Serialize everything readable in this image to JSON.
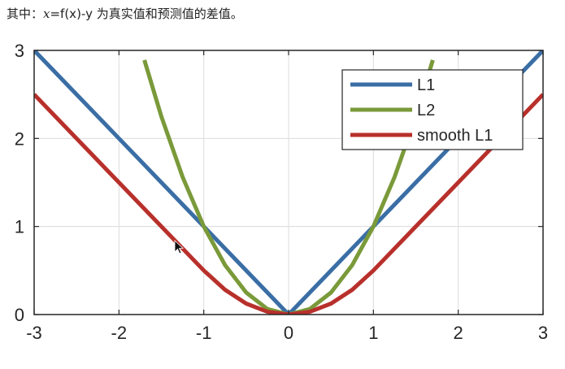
{
  "caption": {
    "prefix": "其中：",
    "var": "x",
    "rest": "=f(x)-y 为真实值和预测值的差值。"
  },
  "chart_data": {
    "type": "line",
    "title": "",
    "xlabel": "",
    "ylabel": "",
    "xlim": [
      -3,
      3
    ],
    "ylim": [
      0,
      3
    ],
    "xticks": [
      -3,
      -2,
      -1,
      0,
      1,
      2,
      3
    ],
    "yticks": [
      0,
      1,
      2,
      3
    ],
    "grid": true,
    "legend_position": "top-right",
    "series": [
      {
        "name": "L1",
        "color": "#3a6ea5",
        "x": [
          -3,
          -2,
          -1,
          0,
          1,
          2,
          3
        ],
        "y": [
          3,
          2,
          1,
          0,
          1,
          2,
          3
        ]
      },
      {
        "name": "L2",
        "color": "#7a9a3a",
        "x": [
          -1.7,
          -1.5,
          -1.25,
          -1,
          -0.75,
          -0.5,
          -0.25,
          0,
          0.25,
          0.5,
          0.75,
          1,
          1.25,
          1.5,
          1.7
        ],
        "y": [
          2.89,
          2.25,
          1.5625,
          1,
          0.5625,
          0.25,
          0.0625,
          0,
          0.0625,
          0.25,
          0.5625,
          1,
          1.5625,
          2.25,
          2.89
        ]
      },
      {
        "name": "smooth L1",
        "color": "#b8302b",
        "x": [
          -3,
          -2,
          -1,
          -0.75,
          -0.5,
          -0.25,
          0,
          0.25,
          0.5,
          0.75,
          1,
          2,
          3
        ],
        "y": [
          2.5,
          1.5,
          0.5,
          0.28125,
          0.125,
          0.03125,
          0,
          0.03125,
          0.125,
          0.28125,
          0.5,
          1.5,
          2.5
        ]
      }
    ]
  }
}
